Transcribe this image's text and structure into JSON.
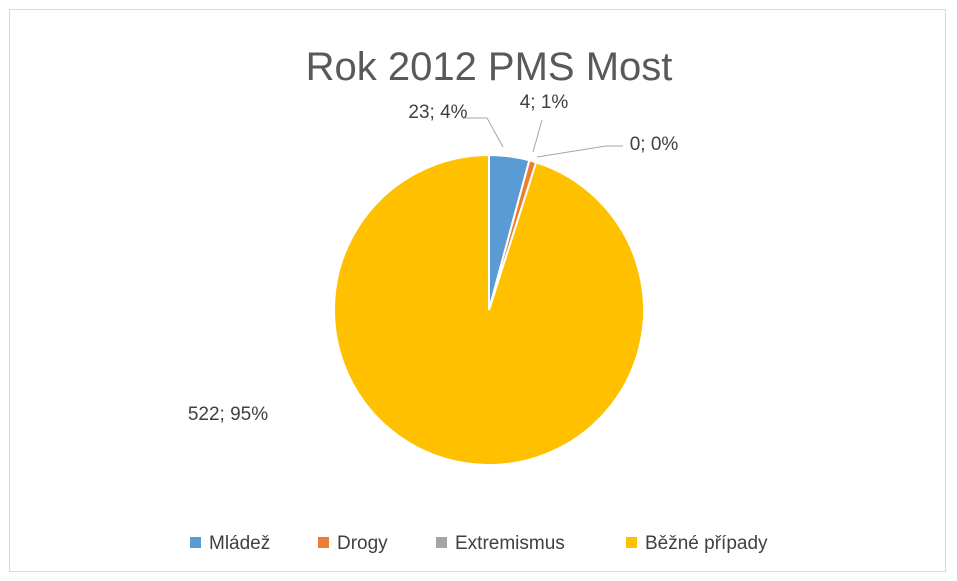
{
  "chart_data": {
    "type": "pie",
    "title": "Rok 2012 PMS Most",
    "legend_position": "bottom",
    "slices": [
      {
        "label": "Mládež",
        "value": 23,
        "percent_label": "4%",
        "data_label": "23; 4%",
        "color": "#5B9BD5"
      },
      {
        "label": "Drogy",
        "value": 4,
        "percent_label": "1%",
        "data_label": "4; 1%",
        "color": "#ED7D31"
      },
      {
        "label": "Extremismus",
        "value": 0,
        "percent_label": "0%",
        "data_label": "0; 0%",
        "color": "#A5A5A5"
      },
      {
        "label": "Běžné případy",
        "value": 522,
        "percent_label": "95%",
        "data_label": "522; 95%",
        "color": "#FFC000"
      }
    ]
  }
}
